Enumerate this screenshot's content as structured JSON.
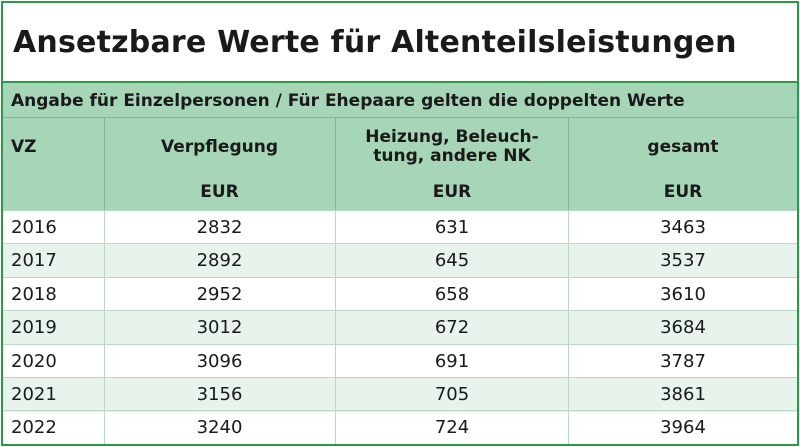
{
  "title": "Ansetzbare Werte für Altenteilsleistungen",
  "subtitle": "Angabe für Einzelpersonen / Für Ehepaare gelten die doppelten Werte",
  "headers": {
    "vz": "VZ",
    "verpflegung": "Verpflegung",
    "heizung_line1": "Heizung, Beleuch-",
    "heizung_line2": "tung, andere NK",
    "gesamt": "gesamt",
    "unit": "EUR"
  },
  "rows": [
    {
      "vz": "2016",
      "verpflegung": "2832",
      "heizung": "631",
      "gesamt": "3463"
    },
    {
      "vz": "2017",
      "verpflegung": "2892",
      "heizung": "645",
      "gesamt": "3537"
    },
    {
      "vz": "2018",
      "verpflegung": "2952",
      "heizung": "658",
      "gesamt": "3610"
    },
    {
      "vz": "2019",
      "verpflegung": "3012",
      "heizung": "672",
      "gesamt": "3684"
    },
    {
      "vz": "2020",
      "verpflegung": "3096",
      "heizung": "691",
      "gesamt": "3787"
    },
    {
      "vz": "2021",
      "verpflegung": "3156",
      "heizung": "705",
      "gesamt": "3861"
    },
    {
      "vz": "2022",
      "verpflegung": "3240",
      "heizung": "724",
      "gesamt": "3964"
    }
  ],
  "colors": {
    "border": "#2a9a4a",
    "header_bg": "#a7d5b8",
    "alt_row_bg": "#e7f3eb"
  }
}
